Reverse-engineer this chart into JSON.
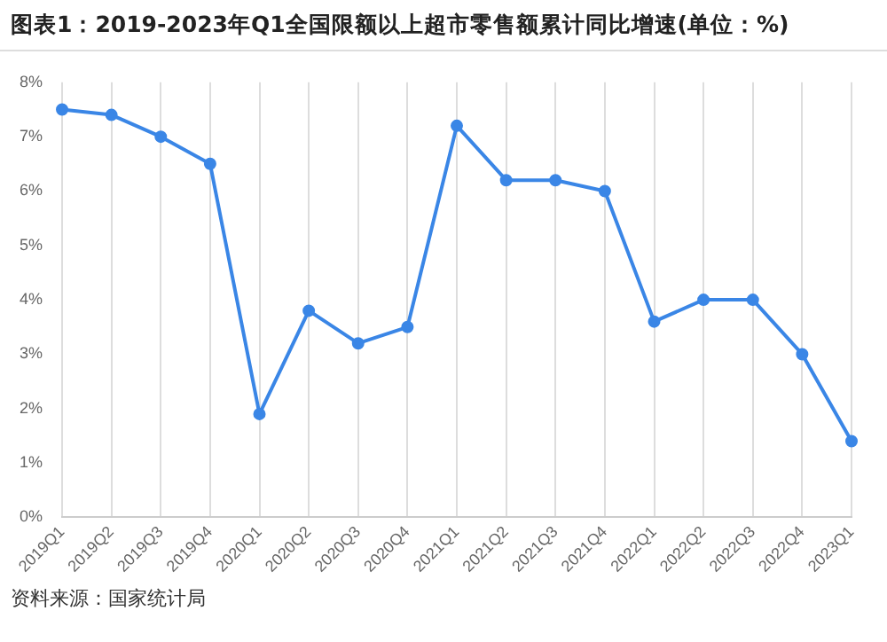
{
  "chart_data": {
    "type": "line",
    "title": "图表1：2019-2023年Q1全国限额以上超市零售额累计同比增速(单位：%)",
    "categories": [
      "2019Q1",
      "2019Q2",
      "2019Q3",
      "2019Q4",
      "2020Q1",
      "2020Q2",
      "2020Q3",
      "2020Q4",
      "2021Q1",
      "2021Q2",
      "2021Q3",
      "2021Q4",
      "2022Q1",
      "2022Q2",
      "2022Q3",
      "2022Q4",
      "2023Q1"
    ],
    "series": [
      {
        "color": "#3a86e6",
        "values": [
          7.5,
          7.4,
          7.0,
          6.5,
          1.9,
          3.8,
          3.2,
          3.5,
          7.2,
          6.2,
          6.2,
          6.0,
          3.6,
          4.0,
          4.0,
          3.0,
          1.4
        ]
      }
    ],
    "ylim": [
      0,
      8
    ],
    "yticks": [
      {
        "value": 0,
        "label": "0%"
      },
      {
        "value": 1,
        "label": "1%"
      },
      {
        "value": 2,
        "label": "2%"
      },
      {
        "value": 3,
        "label": "3%"
      },
      {
        "value": 4,
        "label": "4%"
      },
      {
        "value": 5,
        "label": "5%"
      },
      {
        "value": 6,
        "label": "6%"
      },
      {
        "value": 7,
        "label": "7%"
      },
      {
        "value": 8,
        "label": "8%"
      }
    ],
    "grid": "x",
    "marker": "circle",
    "line_style": "solid",
    "annotations": [
      "资料来源：国家统计局"
    ]
  }
}
